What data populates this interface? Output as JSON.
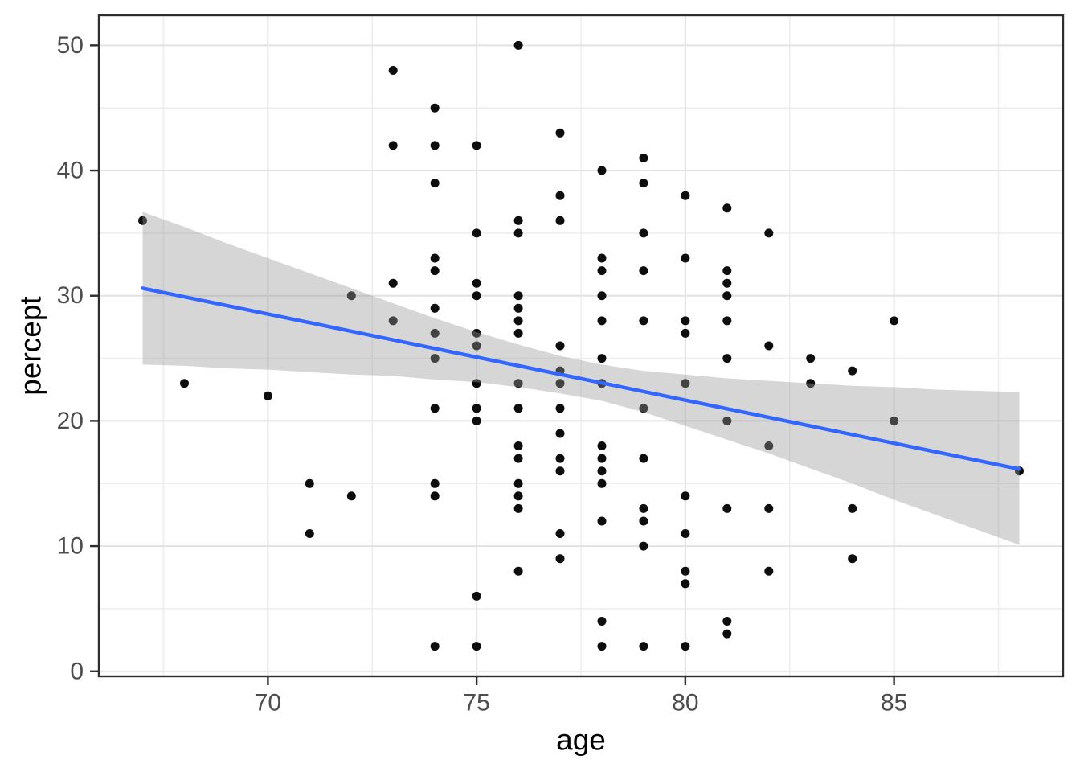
{
  "figure": {
    "xlabel": "age",
    "ylabel": "percept"
  },
  "chart_data": {
    "type": "scatter",
    "title": "",
    "xlabel": "age",
    "ylabel": "percept",
    "legend": "none",
    "grid": "major+minor",
    "xlim": [
      65.95,
      89.05
    ],
    "ylim": [
      -0.4,
      52.4
    ],
    "x_major_ticks": [
      70,
      75,
      80,
      85
    ],
    "x_minor_gridlines": [
      67.5,
      72.5,
      77.5,
      82.5,
      87.5
    ],
    "y_major_ticks": [
      0,
      10,
      20,
      30,
      40,
      50
    ],
    "y_minor_gridlines": [
      5,
      15,
      25,
      35,
      45
    ],
    "points": [
      [
        67,
        36
      ],
      [
        68,
        23
      ],
      [
        70,
        22
      ],
      [
        71,
        15
      ],
      [
        71,
        11
      ],
      [
        72,
        30
      ],
      [
        72,
        14
      ],
      [
        73,
        48
      ],
      [
        73,
        42
      ],
      [
        73,
        31
      ],
      [
        73,
        28
      ],
      [
        74,
        45
      ],
      [
        74,
        42
      ],
      [
        74,
        39
      ],
      [
        74,
        33
      ],
      [
        74,
        32
      ],
      [
        74,
        29
      ],
      [
        74,
        27
      ],
      [
        74,
        25
      ],
      [
        74,
        21
      ],
      [
        74,
        15
      ],
      [
        74,
        14
      ],
      [
        74,
        2
      ],
      [
        75,
        42
      ],
      [
        75,
        35
      ],
      [
        75,
        31
      ],
      [
        75,
        30
      ],
      [
        75,
        27
      ],
      [
        75,
        26
      ],
      [
        75,
        23
      ],
      [
        75,
        21
      ],
      [
        75,
        20
      ],
      [
        75,
        6
      ],
      [
        75,
        2
      ],
      [
        76,
        50
      ],
      [
        76,
        36
      ],
      [
        76,
        35
      ],
      [
        76,
        30
      ],
      [
        76,
        29
      ],
      [
        76,
        28
      ],
      [
        76,
        27
      ],
      [
        76,
        23
      ],
      [
        76,
        21
      ],
      [
        76,
        18
      ],
      [
        76,
        17
      ],
      [
        76,
        15
      ],
      [
        76,
        14
      ],
      [
        76,
        13
      ],
      [
        76,
        8
      ],
      [
        77,
        43
      ],
      [
        77,
        38
      ],
      [
        77,
        36
      ],
      [
        77,
        26
      ],
      [
        77,
        24
      ],
      [
        77,
        23
      ],
      [
        77,
        21
      ],
      [
        77,
        19
      ],
      [
        77,
        17
      ],
      [
        77,
        16
      ],
      [
        77,
        11
      ],
      [
        77,
        9
      ],
      [
        78,
        40
      ],
      [
        78,
        33
      ],
      [
        78,
        32
      ],
      [
        78,
        30
      ],
      [
        78,
        28
      ],
      [
        78,
        25
      ],
      [
        78,
        23
      ],
      [
        78,
        18
      ],
      [
        78,
        17
      ],
      [
        78,
        16
      ],
      [
        78,
        15
      ],
      [
        78,
        12
      ],
      [
        78,
        4
      ],
      [
        78,
        2
      ],
      [
        79,
        41
      ],
      [
        79,
        39
      ],
      [
        79,
        35
      ],
      [
        79,
        32
      ],
      [
        79,
        28
      ],
      [
        79,
        21
      ],
      [
        79,
        17
      ],
      [
        79,
        13
      ],
      [
        79,
        12
      ],
      [
        79,
        10
      ],
      [
        79,
        2
      ],
      [
        80,
        38
      ],
      [
        80,
        33
      ],
      [
        80,
        28
      ],
      [
        80,
        27
      ],
      [
        80,
        23
      ],
      [
        80,
        14
      ],
      [
        80,
        11
      ],
      [
        80,
        8
      ],
      [
        80,
        7
      ],
      [
        80,
        2
      ],
      [
        81,
        37
      ],
      [
        81,
        32
      ],
      [
        81,
        31
      ],
      [
        81,
        30
      ],
      [
        81,
        28
      ],
      [
        81,
        25
      ],
      [
        81,
        20
      ],
      [
        81,
        13
      ],
      [
        81,
        4
      ],
      [
        81,
        3
      ],
      [
        82,
        35
      ],
      [
        82,
        26
      ],
      [
        82,
        18
      ],
      [
        82,
        13
      ],
      [
        82,
        8
      ],
      [
        83,
        25
      ],
      [
        83,
        23
      ],
      [
        84,
        24
      ],
      [
        84,
        13
      ],
      [
        84,
        9
      ],
      [
        85,
        28
      ],
      [
        85,
        20
      ],
      [
        88,
        16
      ]
    ],
    "smooth": {
      "method": "lm",
      "line": {
        "x1": 67,
        "y1": 30.6,
        "x2": 88,
        "y2": 16.15
      },
      "ribbon": {
        "x": [
          67,
          68,
          69,
          70,
          71,
          72,
          73,
          74,
          75,
          76,
          77,
          78,
          79,
          80,
          81,
          82,
          83,
          84,
          85,
          86,
          87,
          88
        ],
        "upper": [
          36.7,
          35.5,
          34.2,
          33.0,
          31.8,
          30.6,
          29.4,
          28.2,
          27.1,
          26.1,
          25.2,
          24.5,
          24.0,
          23.7,
          23.4,
          23.2,
          23.0,
          22.8,
          22.7,
          22.5,
          22.4,
          22.3
        ],
        "lower": [
          24.5,
          24.4,
          24.2,
          24.1,
          23.9,
          23.7,
          23.6,
          23.3,
          23.1,
          22.7,
          22.2,
          21.6,
          20.7,
          19.6,
          18.5,
          17.4,
          16.2,
          15.0,
          13.7,
          12.5,
          11.3,
          10.1
        ]
      }
    },
    "style": {
      "point_color": "#0d0d0d",
      "point_radius": 5.5,
      "line_color": "#3366FF",
      "line_width": 4.5,
      "ribbon_fill": "#999999",
      "ribbon_opacity": 0.4,
      "panel_border_color": "#2e2e2e",
      "grid_major_color": "#e2e2e2",
      "grid_minor_color": "#ededed",
      "tick_mark_color": "#2e2e2e",
      "tick_label_color": "#4d4d4d",
      "axis_title_color": "#000000",
      "background": "#ffffff"
    }
  }
}
